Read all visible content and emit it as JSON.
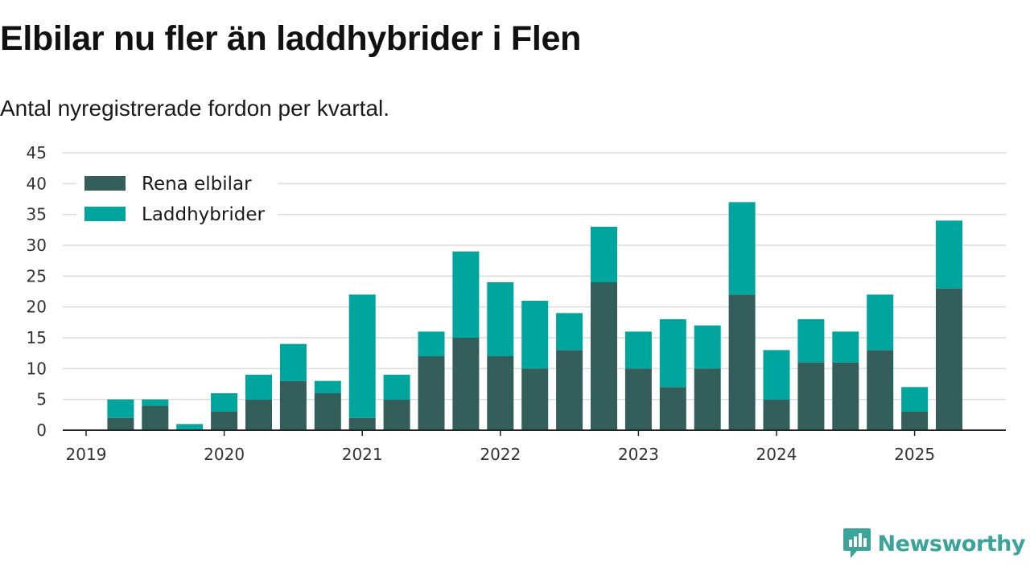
{
  "title": "Elbilar nu fler än laddhybrider i Flen",
  "subtitle": "Antal nyregistrerade fordon per kvartal.",
  "brand": {
    "name": "Newsworthy",
    "icon": "newsworthy-logo-icon"
  },
  "colors": {
    "rena_elbilar": "#335e5a",
    "laddhybrider": "#00a59e",
    "grid": "#dcdcdc",
    "axis": "#222222",
    "brand": "#3aa39a"
  },
  "chart_data": {
    "type": "bar",
    "stacked": true,
    "title": "Elbilar nu fler än laddhybrider i Flen",
    "subtitle": "Antal nyregistrerade fordon per kvartal.",
    "categories": [
      "2019 Q1",
      "2019 Q2",
      "2019 Q3",
      "2019 Q4",
      "2020 Q1",
      "2020 Q2",
      "2020 Q3",
      "2020 Q4",
      "2021 Q1",
      "2021 Q2",
      "2021 Q3",
      "2021 Q4",
      "2022 Q1",
      "2022 Q2",
      "2022 Q3",
      "2022 Q4",
      "2023 Q1",
      "2023 Q2",
      "2023 Q3",
      "2023 Q4",
      "2024 Q1",
      "2024 Q2",
      "2024 Q3",
      "2024 Q4",
      "2025 Q1",
      "2025 Q2",
      "2025 Q3"
    ],
    "series": [
      {
        "name": "Rena elbilar",
        "values": [
          0,
          2,
          4,
          0,
          3,
          5,
          8,
          6,
          2,
          5,
          12,
          15,
          12,
          10,
          13,
          24,
          10,
          7,
          10,
          22,
          5,
          11,
          11,
          13,
          3,
          23,
          0
        ]
      },
      {
        "name": "Laddhybrider",
        "values": [
          0,
          3,
          1,
          1,
          3,
          4,
          6,
          2,
          20,
          4,
          4,
          14,
          12,
          11,
          6,
          9,
          6,
          11,
          7,
          15,
          8,
          7,
          5,
          9,
          4,
          11,
          0
        ]
      }
    ],
    "x_tick_labels": [
      "2019",
      "2020",
      "2021",
      "2022",
      "2023",
      "2024",
      "2025"
    ],
    "y_ticks": [
      0,
      5,
      10,
      15,
      20,
      25,
      30,
      35,
      40,
      45
    ],
    "ylim": [
      0,
      45
    ],
    "xlabel": "",
    "ylabel": "",
    "grid": true,
    "legend": "top-left"
  }
}
